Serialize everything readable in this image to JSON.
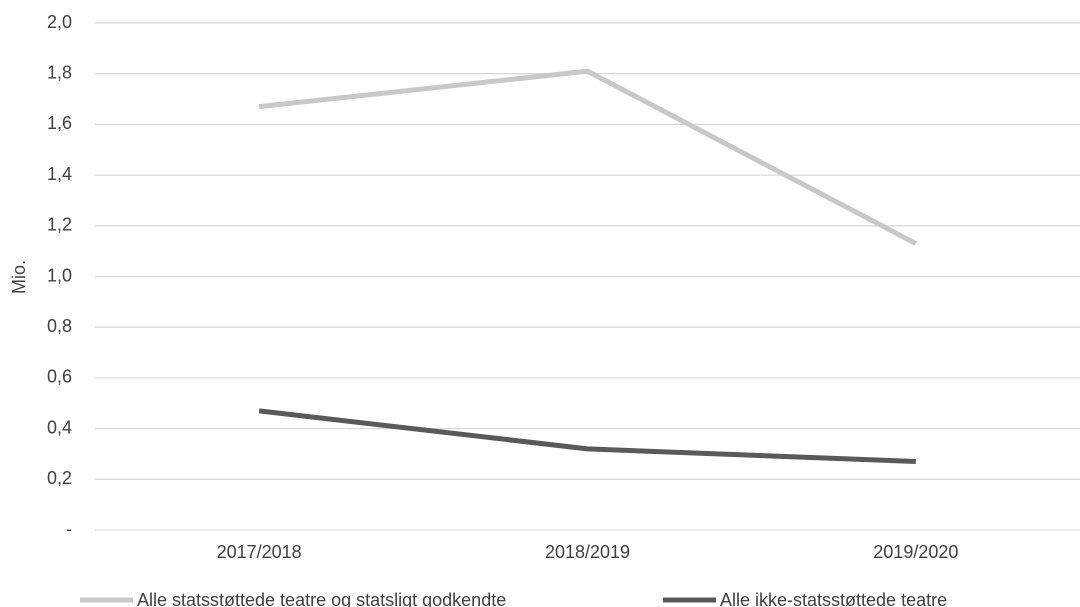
{
  "chart_data": {
    "type": "line",
    "y_label": "Mio.",
    "categories": [
      "2017/2018",
      "2018/2019",
      "2019/2020"
    ],
    "series": [
      {
        "name": "Alle statsstøttede teatre og statsligt godkendte",
        "color": "#c8c8c8",
        "values": [
          1.67,
          1.81,
          1.13
        ]
      },
      {
        "name": "Alle ikke-statsstøttede teatre",
        "color": "#595959",
        "values": [
          0.47,
          0.32,
          0.27
        ]
      }
    ],
    "ylim": [
      0,
      2.0
    ],
    "yticks": [
      {
        "value": 0,
        "label": "-"
      },
      {
        "value": 0.2,
        "label": "0,2"
      },
      {
        "value": 0.4,
        "label": "0,4"
      },
      {
        "value": 0.6,
        "label": "0,6"
      },
      {
        "value": 0.8,
        "label": "0,8"
      },
      {
        "value": 1.0,
        "label": "1,0"
      },
      {
        "value": 1.2,
        "label": "1,2"
      },
      {
        "value": 1.4,
        "label": "1,4"
      },
      {
        "value": 1.6,
        "label": "1,6"
      },
      {
        "value": 1.8,
        "label": "1,8"
      },
      {
        "value": 2.0,
        "label": "2,0"
      }
    ],
    "grid": true,
    "legend": "bottom"
  }
}
